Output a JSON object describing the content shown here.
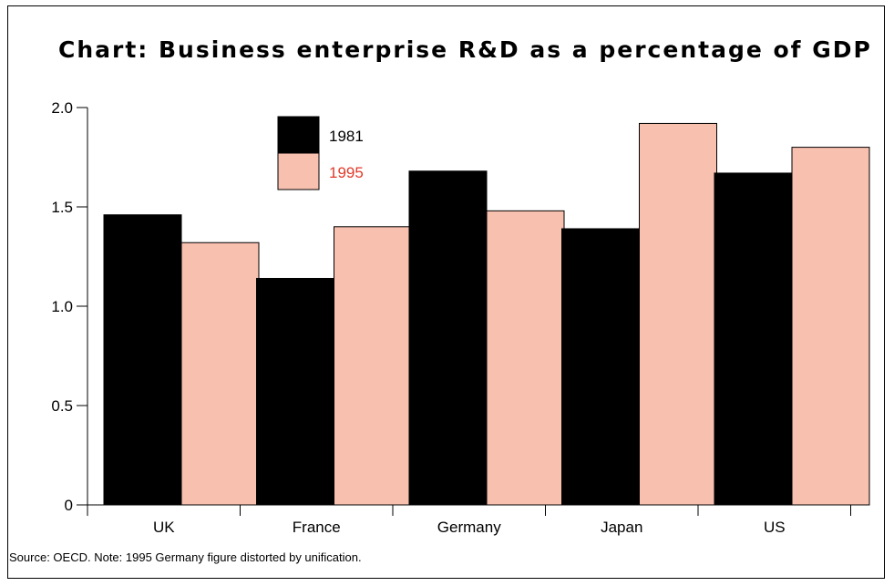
{
  "title": "Chart: Business enterprise R&D as a percentage of GDP",
  "source": "Source: OECD. Note: 1995 Germany figure distorted by unification.",
  "colors": {
    "s1981": "#000000",
    "s1995": "#f8c0ae",
    "legend_text_1981": "#000000",
    "legend_text_1995": "#e03a2a"
  },
  "chart_data": {
    "type": "bar",
    "title": "Chart: Business enterprise R&D as a percentage of GDP",
    "categories": [
      "UK",
      "France",
      "Germany",
      "Japan",
      "US"
    ],
    "series": [
      {
        "name": "1981",
        "values": [
          1.46,
          1.14,
          1.68,
          1.39,
          1.67
        ]
      },
      {
        "name": "1995",
        "values": [
          1.32,
          1.4,
          1.48,
          1.92,
          1.8
        ]
      }
    ],
    "ylim": [
      0,
      2.0
    ],
    "yticks": [
      "0",
      "0.5",
      "1.0",
      "1.5",
      "2.0"
    ],
    "ytick_values": [
      0,
      0.5,
      1.0,
      1.5,
      2.0
    ],
    "xlabel": "",
    "ylabel": "",
    "legend": "top-left inside plot",
    "grid": false
  }
}
